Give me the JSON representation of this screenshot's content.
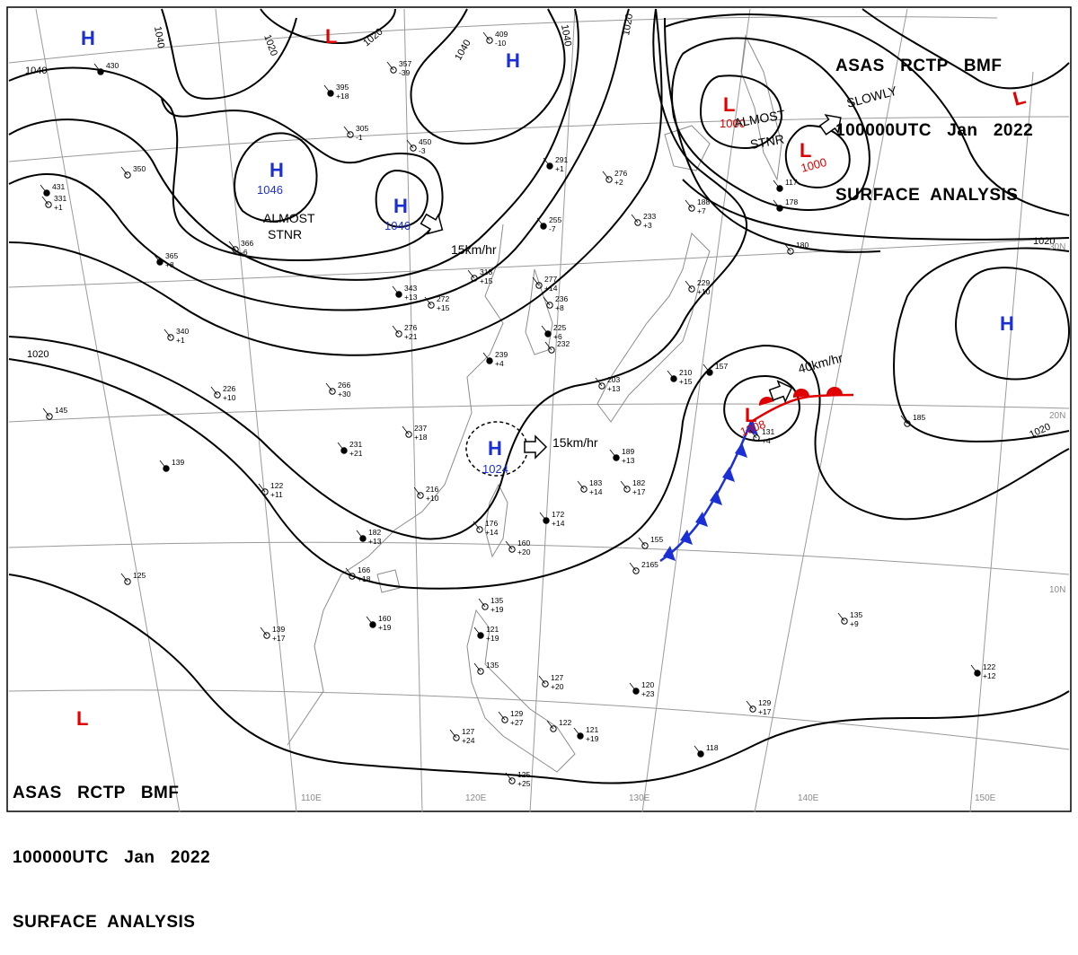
{
  "header": {
    "line1": "ASAS   RCTP   BMF",
    "line2": "100000UTC   Jan   2022",
    "line3": "SURFACE  ANALYSIS"
  },
  "isobar_labels": [
    "1040",
    "1020",
    "1020",
    "1040",
    "1040",
    "1020",
    "1040",
    "1020",
    "1020",
    "1020"
  ],
  "pressure_centers": [
    {
      "type": "H",
      "value": ""
    },
    {
      "type": "L",
      "value": ""
    },
    {
      "type": "H",
      "value": ""
    },
    {
      "type": "H",
      "value": "1046"
    },
    {
      "type": "H",
      "value": "1046"
    },
    {
      "type": "L",
      "value": "1000"
    },
    {
      "type": "L",
      "value": "1000"
    },
    {
      "type": "L",
      "value": ""
    },
    {
      "type": "H",
      "value": ""
    },
    {
      "type": "H",
      "value": "1024"
    },
    {
      "type": "L",
      "value": "1008"
    },
    {
      "type": "L",
      "value": ""
    }
  ],
  "annotations": {
    "almost_stnr_1": [
      "ALMOST",
      "STNR"
    ],
    "almost_stnr_2": [
      "ALMOST",
      "STNR"
    ],
    "slowly": "SLOWLY",
    "motion_1": "15km/hr",
    "motion_2": "15km/hr",
    "motion_3": "40km/hr"
  },
  "lat_labels": [
    "30N",
    "20N",
    "10N"
  ],
  "lon_labels": [
    "110E",
    "120E",
    "130E",
    "140E",
    "150E"
  ],
  "stations": [
    {
      "t": "430",
      "v": ""
    },
    {
      "t": "409",
      "v": "-10"
    },
    {
      "t": "357",
      "v": "-39"
    },
    {
      "t": "395",
      "v": "+18"
    },
    {
      "t": "305",
      "v": "-1"
    },
    {
      "t": "450",
      "v": "-3"
    },
    {
      "t": "431",
      "v": ""
    },
    {
      "t": "350",
      "v": ""
    },
    {
      "t": "331",
      "v": "+1"
    },
    {
      "t": "291",
      "v": "+1"
    },
    {
      "t": "276",
      "v": "+2"
    },
    {
      "t": "233",
      "v": "+3"
    },
    {
      "t": "255",
      "v": "-7"
    },
    {
      "t": "318",
      "v": "+15"
    },
    {
      "t": "277",
      "v": "+14"
    },
    {
      "t": "343",
      "v": "+13"
    },
    {
      "t": "272",
      "v": "+15"
    },
    {
      "t": "276",
      "v": "+21"
    },
    {
      "t": "365",
      "v": "+8"
    },
    {
      "t": "366",
      "v": "-6"
    },
    {
      "t": "340",
      "v": "+1"
    },
    {
      "t": "239",
      "v": "+4"
    },
    {
      "t": "266",
      "v": "+30"
    },
    {
      "t": "237",
      "v": "+18"
    },
    {
      "t": "231",
      "v": "+21"
    },
    {
      "t": "226",
      "v": "+10"
    },
    {
      "t": "145",
      "v": ""
    },
    {
      "t": "139",
      "v": ""
    },
    {
      "t": "122",
      "v": "+11"
    },
    {
      "t": "216",
      "v": "+10"
    },
    {
      "t": "189",
      "v": "+13"
    },
    {
      "t": "183",
      "v": "+14"
    },
    {
      "t": "182",
      "v": "+17"
    },
    {
      "t": "172",
      "v": "+14"
    },
    {
      "t": "176",
      "v": "+14"
    },
    {
      "t": "160",
      "v": "+20"
    },
    {
      "t": "182",
      "v": "+13"
    },
    {
      "t": "166",
      "v": "+18"
    },
    {
      "t": "125",
      "v": ""
    },
    {
      "t": "160",
      "v": "+19"
    },
    {
      "t": "139",
      "v": "+17"
    },
    {
      "t": "135",
      "v": "+19"
    },
    {
      "t": "121",
      "v": "+19"
    },
    {
      "t": "135",
      "v": ""
    },
    {
      "t": "127",
      "v": "+20"
    },
    {
      "t": "120",
      "v": "+23"
    },
    {
      "t": "129",
      "v": "+27"
    },
    {
      "t": "122",
      "v": ""
    },
    {
      "t": "121",
      "v": "+19"
    },
    {
      "t": "127",
      "v": "+24"
    },
    {
      "t": "125",
      "v": "+25"
    },
    {
      "t": "118",
      "v": ""
    },
    {
      "t": "129",
      "v": "+17"
    },
    {
      "t": "135",
      "v": "+9"
    },
    {
      "t": "122",
      "v": "+12"
    },
    {
      "t": "155",
      "v": ""
    },
    {
      "t": "2165",
      "v": ""
    },
    {
      "t": "157",
      "v": ""
    },
    {
      "t": "131",
      "v": "+4"
    },
    {
      "t": "185",
      "v": ""
    },
    {
      "t": "178",
      "v": ""
    },
    {
      "t": "180",
      "v": ""
    },
    {
      "t": "229",
      "v": "+10"
    },
    {
      "t": "210",
      "v": "+15"
    },
    {
      "t": "203",
      "v": "+13"
    },
    {
      "t": "236",
      "v": "+8"
    },
    {
      "t": "225",
      "v": "+6"
    },
    {
      "t": "232",
      "v": ""
    },
    {
      "t": "188",
      "v": "+7"
    },
    {
      "t": "117",
      "v": ""
    }
  ],
  "colors": {
    "line": "#000000",
    "high": "#1a2fd6",
    "low": "#e00000",
    "cold_front": "#1a2fd6",
    "warm_front": "#e00000",
    "grid": "#9a9a9a",
    "coast": "#8c8c8c"
  }
}
